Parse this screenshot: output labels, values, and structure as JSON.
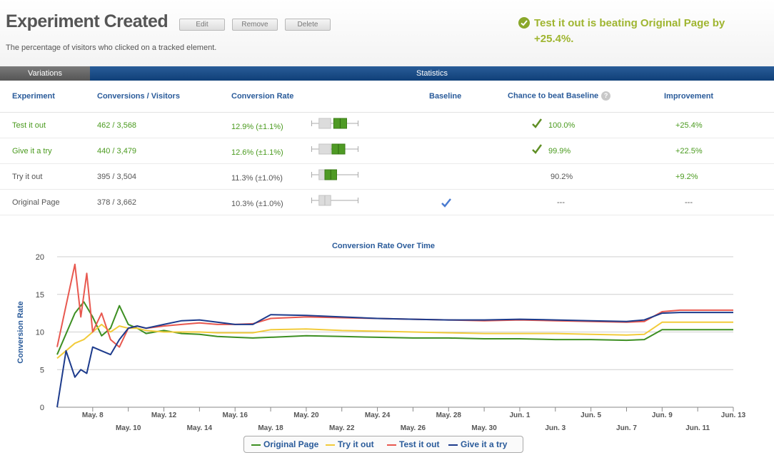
{
  "header": {
    "title": "Experiment Created",
    "edit_label": "Edit",
    "remove_label": "Remove",
    "delete_label": "Delete",
    "subtitle": "The percentage of visitors who clicked on a tracked element.",
    "winner_text": "Test it out is beating Original Page by",
    "winner_value": "+25.4%."
  },
  "tabs": {
    "variations": "Variations",
    "statistics": "Statistics"
  },
  "table": {
    "headers": {
      "experiment": "Experiment",
      "conversions": "Conversions / Visitors",
      "rate": "Conversion Rate",
      "baseline": "Baseline",
      "chance": "Chance to beat Baseline",
      "improvement": "Improvement",
      "help_glyph": "?"
    },
    "rows": [
      {
        "name": "Test it out",
        "conversions": "462 / 3,568",
        "rate": "12.9% (±1.1%)",
        "baseline": "",
        "chance": "100.0%",
        "improvement": "+25.4%",
        "winner": true,
        "ci_low": 11.8,
        "ci_high": 14.0
      },
      {
        "name": "Give it a try",
        "conversions": "440 / 3,479",
        "rate": "12.6% (±1.1%)",
        "baseline": "",
        "chance": "99.9%",
        "improvement": "+22.5%",
        "winner": true,
        "ci_low": 11.5,
        "ci_high": 13.7
      },
      {
        "name": "Try it out",
        "conversions": "395 / 3,504",
        "rate": "11.3% (±1.0%)",
        "baseline": "",
        "chance": "90.2%",
        "improvement": "+9.2%",
        "winner": false,
        "ci_low": 10.3,
        "ci_high": 12.3
      },
      {
        "name": "Original Page",
        "conversions": "378 / 3,662",
        "rate": "10.3% (±1.0%)",
        "baseline": "check",
        "chance": "---",
        "improvement": "---",
        "winner": false,
        "ci_low": 9.3,
        "ci_high": 11.3
      }
    ]
  },
  "colors": {
    "accent_blue": "#2a5b9a",
    "green": "#4a9a1e",
    "winner_olive": "#9fb530"
  },
  "chart_data": {
    "type": "line",
    "title": "Conversion Rate Over Time",
    "xlabel": "",
    "ylabel": "Conversion Rate",
    "ylim": [
      0,
      20
    ],
    "yticks": [
      0,
      5,
      10,
      15,
      20
    ],
    "xlim": [
      "May. 6",
      "Jun. 13"
    ],
    "xticks_top": [
      "May. 8",
      "May. 12",
      "May. 16",
      "May. 20",
      "May. 24",
      "May. 28",
      "Jun. 1",
      "Jun. 5",
      "Jun. 9",
      "Jun. 13"
    ],
    "xticks_bottom": [
      "May. 10",
      "May. 14",
      "May. 18",
      "May. 22",
      "May. 26",
      "May. 30",
      "Jun. 3",
      "Jun. 7",
      "Jun. 11"
    ],
    "legend_position": "bottom",
    "series": [
      {
        "name": "Original Page",
        "color": "#3d8f22",
        "x": [
          "May. 6",
          "May. 7",
          "May. 7",
          "May. 8",
          "May. 8",
          "May. 9",
          "May. 9",
          "May. 10",
          "May. 10",
          "May. 11",
          "May. 12",
          "May. 13",
          "May. 14",
          "May. 15",
          "May. 16",
          "May. 17",
          "May. 18",
          "May. 20",
          "May. 22",
          "May. 24",
          "May. 26",
          "May. 28",
          "May. 30",
          "Jun. 1",
          "Jun. 3",
          "Jun. 5",
          "Jun. 7",
          "Jun. 8",
          "Jun. 9",
          "Jun. 10",
          "Jun. 11",
          "Jun. 12",
          "Jun. 13"
        ],
        "y": [
          7,
          12.5,
          14,
          12,
          9.5,
          10.5,
          13.5,
          11,
          10.5,
          9.8,
          10.2,
          9.8,
          9.7,
          9.4,
          9.3,
          9.2,
          9.3,
          9.5,
          9.4,
          9.3,
          9.2,
          9.2,
          9.1,
          9.1,
          9.0,
          9.0,
          8.9,
          9.0,
          10.3,
          10.3,
          10.3,
          10.3,
          10.3
        ]
      },
      {
        "name": "Try it out",
        "color": "#f2cb3a",
        "x": [
          "May. 6",
          "May. 7",
          "May. 7",
          "May. 8",
          "May. 8",
          "May. 9",
          "May. 9",
          "May. 10",
          "May. 10",
          "May. 11",
          "May. 12",
          "May. 13",
          "May. 14",
          "May. 15",
          "May. 16",
          "May. 17",
          "May. 18",
          "May. 20",
          "May. 22",
          "May. 24",
          "May. 26",
          "May. 28",
          "May. 30",
          "Jun. 1",
          "Jun. 3",
          "Jun. 5",
          "Jun. 7",
          "Jun. 8",
          "Jun. 9",
          "Jun. 10",
          "Jun. 11",
          "Jun. 12",
          "Jun. 13"
        ],
        "y": [
          6.5,
          8.5,
          9,
          10,
          11,
          10,
          10.8,
          10.5,
          10.5,
          10.2,
          10.0,
          10.0,
          10.0,
          9.9,
          9.9,
          9.9,
          10.3,
          10.4,
          10.2,
          10.1,
          10.0,
          9.9,
          9.8,
          9.8,
          9.8,
          9.7,
          9.6,
          9.7,
          11.3,
          11.3,
          11.3,
          11.3,
          11.3
        ]
      },
      {
        "name": "Test it out",
        "color": "#e8584f",
        "x": [
          "May. 6",
          "May. 7",
          "May. 7",
          "May. 7",
          "May. 8",
          "May. 8",
          "May. 9",
          "May. 9",
          "May. 10",
          "May. 10",
          "May. 11",
          "May. 12",
          "May. 13",
          "May. 14",
          "May. 15",
          "May. 16",
          "May. 17",
          "May. 18",
          "May. 20",
          "May. 22",
          "May. 24",
          "May. 26",
          "May. 28",
          "May. 30",
          "Jun. 1",
          "Jun. 3",
          "Jun. 5",
          "Jun. 7",
          "Jun. 8",
          "Jun. 9",
          "Jun. 10",
          "Jun. 11",
          "Jun. 12",
          "Jun. 13"
        ],
        "y": [
          8,
          19,
          12,
          17.8,
          10,
          12.5,
          9,
          8,
          10.5,
          10.8,
          10.5,
          10.8,
          11.0,
          11.2,
          11.0,
          11.0,
          11.1,
          11.8,
          12.0,
          11.9,
          11.8,
          11.7,
          11.6,
          11.5,
          11.6,
          11.5,
          11.4,
          11.3,
          11.4,
          12.7,
          12.9,
          12.9,
          12.9,
          12.9
        ]
      },
      {
        "name": "Give it a try",
        "color": "#1d3b8c",
        "x": [
          "May. 6",
          "May. 6",
          "May. 7",
          "May. 7",
          "May. 7",
          "May. 8",
          "May. 8",
          "May. 9",
          "May. 9",
          "May. 10",
          "May. 10",
          "May. 11",
          "May. 12",
          "May. 13",
          "May. 14",
          "May. 15",
          "May. 16",
          "May. 17",
          "May. 18",
          "May. 20",
          "May. 22",
          "May. 24",
          "May. 26",
          "May. 28",
          "May. 30",
          "Jun. 1",
          "Jun. 3",
          "Jun. 5",
          "Jun. 7",
          "Jun. 8",
          "Jun. 9",
          "Jun. 10",
          "Jun. 11",
          "Jun. 12",
          "Jun. 13"
        ],
        "y": [
          0,
          7.5,
          4,
          5,
          4.5,
          8,
          7.5,
          7,
          9,
          10.5,
          10.8,
          10.5,
          11.0,
          11.5,
          11.6,
          11.3,
          11.0,
          11.0,
          12.3,
          12.2,
          12.0,
          11.8,
          11.7,
          11.6,
          11.6,
          11.7,
          11.6,
          11.5,
          11.4,
          11.6,
          12.5,
          12.6,
          12.6,
          12.6,
          12.6
        ]
      }
    ]
  }
}
